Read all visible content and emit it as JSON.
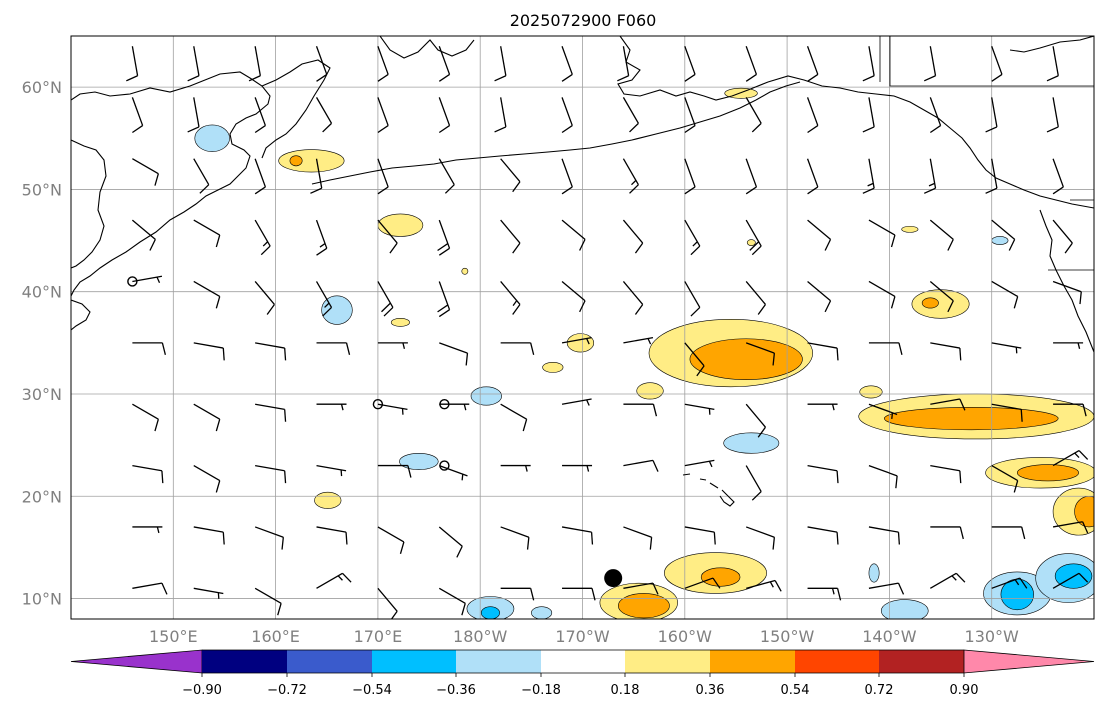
{
  "title": "2025072900 F060",
  "colors": {
    "frame": "#000000",
    "grid": "#a0a0a0",
    "coast": "#000000",
    "barb": "#000000",
    "tick_label": "#808080"
  },
  "map": {
    "projection": "equirectangular",
    "lon_range": [
      140,
      240
    ],
    "lat_range": [
      8,
      65
    ],
    "lat_lines": [
      10,
      20,
      30,
      40,
      50,
      60
    ],
    "lon_lines": [
      150,
      160,
      170,
      180,
      190,
      200,
      210,
      220,
      230
    ],
    "lat_labels": [
      "10°N",
      "20°N",
      "30°N",
      "40°N",
      "50°N",
      "60°N"
    ],
    "lon_labels": [
      "150°E",
      "160°E",
      "170°E",
      "180°W",
      "170°W",
      "160°W",
      "150°W",
      "140°W",
      "130°W"
    ]
  },
  "colorbar": {
    "levels": [
      -0.9,
      -0.72,
      -0.54,
      -0.36,
      -0.18,
      0.18,
      0.36,
      0.54,
      0.72,
      0.9
    ],
    "labels": [
      "−0.90",
      "−0.72",
      "−0.54",
      "−0.36",
      "−0.18",
      "0.18",
      "0.36",
      "0.54",
      "0.72",
      "0.90"
    ],
    "colors": [
      "#9932CC",
      "#000080",
      "#3A5BCC",
      "#00BFFF",
      "#B0E0F8",
      "#FFFFFF",
      "#FFED85",
      "#FFA500",
      "#FF4500",
      "#B22222",
      "#FF88AA"
    ]
  },
  "chart_data": {
    "type": "contourf",
    "variable_levels": [
      -0.9,
      -0.72,
      -0.54,
      -0.36,
      -0.18,
      0.18,
      0.36,
      0.54,
      0.72,
      0.9
    ],
    "marker": {
      "lon": 193.0,
      "lat": 12.0,
      "kind": "filled-circle"
    },
    "calm_circles": [
      {
        "lon": 146,
        "lat": 41
      },
      {
        "lon": 170,
        "lat": 29
      },
      {
        "lon": 176.5,
        "lat": 29
      },
      {
        "lon": 176.5,
        "lat": 23
      }
    ],
    "regions": [
      {
        "level": 0.18,
        "lon": 163.5,
        "lat": 52.8,
        "rx": 3.2,
        "ry": 1.1,
        "inner": [
          {
            "level": 0.36,
            "lon": 162.0,
            "lat": 52.8,
            "rx": 0.6,
            "ry": 0.5
          }
        ]
      },
      {
        "level": -0.18,
        "lon": 153.8,
        "lat": 55.0,
        "rx": 1.7,
        "ry": 1.3
      },
      {
        "level": 0.18,
        "lon": 172.2,
        "lat": 46.5,
        "rx": 2.2,
        "ry": 1.1
      },
      {
        "level": 0.18,
        "lon": 172.2,
        "lat": 37.0,
        "rx": 0.9,
        "ry": 0.4
      },
      {
        "level": -0.18,
        "lon": 166.0,
        "lat": 38.2,
        "rx": 1.5,
        "ry": 1.4
      },
      {
        "level": -0.18,
        "lon": 180.6,
        "lat": 29.8,
        "rx": 1.5,
        "ry": 0.9
      },
      {
        "level": -0.18,
        "lon": 174.0,
        "lat": 23.4,
        "rx": 1.9,
        "ry": 0.8
      },
      {
        "level": 0.18,
        "lon": 165.1,
        "lat": 19.6,
        "rx": 1.3,
        "ry": 0.8
      },
      {
        "level": 0.18,
        "lon": 189.8,
        "lat": 35.0,
        "rx": 1.3,
        "ry": 0.9
      },
      {
        "level": 0.18,
        "lon": 187.1,
        "lat": 32.6,
        "rx": 1.0,
        "ry": 0.5
      },
      {
        "level": 0.18,
        "lon": 196.6,
        "lat": 30.3,
        "rx": 1.3,
        "ry": 0.8
      },
      {
        "level": 0.18,
        "lon": 204.5,
        "lat": 34.0,
        "rx": 8.0,
        "ry": 3.3,
        "inner": [
          {
            "level": 0.36,
            "lon": 206.0,
            "lat": 33.4,
            "rx": 5.5,
            "ry": 2.0
          }
        ]
      },
      {
        "level": -0.18,
        "lon": 206.5,
        "lat": 25.2,
        "rx": 2.7,
        "ry": 1.0
      },
      {
        "level": 0.18,
        "lon": 225.0,
        "lat": 38.8,
        "rx": 2.8,
        "ry": 1.4,
        "inner": [
          {
            "level": 0.36,
            "lon": 224.0,
            "lat": 38.9,
            "rx": 0.8,
            "ry": 0.5
          }
        ]
      },
      {
        "level": 0.18,
        "lon": 228.5,
        "lat": 27.8,
        "rx": 11.5,
        "ry": 2.2,
        "inner": [
          {
            "level": 0.36,
            "lon": 228.0,
            "lat": 27.6,
            "rx": 8.5,
            "ry": 1.1
          }
        ]
      },
      {
        "level": 0.18,
        "lon": 234.8,
        "lat": 22.3,
        "rx": 5.4,
        "ry": 1.5,
        "inner": [
          {
            "level": 0.36,
            "lon": 235.5,
            "lat": 22.3,
            "rx": 3.0,
            "ry": 0.8
          }
        ]
      },
      {
        "level": 0.18,
        "lon": 238.5,
        "lat": 18.5,
        "rx": 2.5,
        "ry": 2.3,
        "inner": [
          {
            "level": 0.36,
            "lon": 239.5,
            "lat": 18.5,
            "rx": 1.4,
            "ry": 1.5
          }
        ]
      },
      {
        "level": 0.18,
        "lon": 203.0,
        "lat": 12.5,
        "rx": 5.0,
        "ry": 2.0,
        "inner": [
          {
            "level": 0.36,
            "lon": 203.5,
            "lat": 12.1,
            "rx": 1.9,
            "ry": 0.9
          }
        ]
      },
      {
        "level": 0.18,
        "lon": 195.5,
        "lat": 9.6,
        "rx": 3.8,
        "ry": 1.9,
        "inner": [
          {
            "level": 0.36,
            "lon": 196.0,
            "lat": 9.3,
            "rx": 2.5,
            "ry": 1.2
          }
        ]
      },
      {
        "level": -0.18,
        "lon": 181.0,
        "lat": 9.0,
        "rx": 2.3,
        "ry": 1.2,
        "inner": [
          {
            "level": -0.36,
            "lon": 181.0,
            "lat": 8.6,
            "rx": 0.9,
            "ry": 0.6
          }
        ]
      },
      {
        "level": -0.18,
        "lon": 186.0,
        "lat": 8.6,
        "rx": 1.0,
        "ry": 0.6
      },
      {
        "level": -0.18,
        "lon": 221.5,
        "lat": 8.8,
        "rx": 2.3,
        "ry": 1.1
      },
      {
        "level": -0.18,
        "lon": 232.5,
        "lat": 10.5,
        "rx": 3.3,
        "ry": 2.1,
        "inner": [
          {
            "level": -0.36,
            "lon": 232.5,
            "lat": 10.4,
            "rx": 1.6,
            "ry": 1.5
          }
        ]
      },
      {
        "level": -0.18,
        "lon": 237.5,
        "lat": 12.0,
        "rx": 3.2,
        "ry": 2.4,
        "inner": [
          {
            "level": -0.36,
            "lon": 238.0,
            "lat": 12.2,
            "rx": 1.8,
            "ry": 1.2
          }
        ]
      },
      {
        "level": -0.18,
        "lon": 218.5,
        "lat": 12.5,
        "rx": 0.5,
        "ry": 0.9
      },
      {
        "level": 0.18,
        "lon": 205.5,
        "lat": 59.4,
        "rx": 1.6,
        "ry": 0.5
      },
      {
        "level": 0.18,
        "lon": 222.0,
        "lat": 46.1,
        "rx": 0.8,
        "ry": 0.3
      },
      {
        "level": -0.18,
        "lon": 230.8,
        "lat": 45.0,
        "rx": 0.8,
        "ry": 0.4
      },
      {
        "level": 0.18,
        "lon": 178.5,
        "lat": 42.0,
        "rx": 0.3,
        "ry": 0.3
      },
      {
        "level": 0.18,
        "lon": 206.5,
        "lat": 44.8,
        "rx": 0.4,
        "ry": 0.3
      },
      {
        "level": 0.18,
        "lon": 218.2,
        "lat": 30.2,
        "rx": 1.1,
        "ry": 0.6
      }
    ],
    "wind_grid": {
      "lons": [
        146,
        152,
        158,
        164,
        170,
        176,
        182,
        188,
        194,
        200,
        206,
        212,
        218,
        224,
        230,
        236
      ],
      "lats": [
        11,
        17,
        23,
        29,
        35,
        41,
        47,
        53,
        59,
        64
      ],
      "barbs": [
        [
          [
            80,
            10
          ],
          [
            100,
            5
          ],
          [
            120,
            10
          ],
          [
            60,
            15
          ],
          [
            140,
            10
          ],
          [
            120,
            10
          ],
          [
            90,
            10
          ],
          [
            90,
            10
          ],
          [
            80,
            10
          ],
          [
            70,
            10
          ],
          [
            75,
            15
          ],
          [
            90,
            15
          ],
          [
            80,
            10
          ],
          [
            60,
            15
          ],
          [
            70,
            15
          ],
          [
            60,
            10
          ]
        ],
        [
          [
            90,
            5
          ],
          [
            100,
            10
          ],
          [
            110,
            10
          ],
          [
            100,
            10
          ],
          [
            120,
            10
          ],
          [
            130,
            10
          ],
          [
            110,
            10
          ],
          [
            100,
            10
          ],
          [
            110,
            10
          ],
          [
            100,
            10
          ],
          [
            110,
            10
          ],
          [
            100,
            10
          ],
          [
            100,
            10
          ],
          [
            90,
            10
          ],
          [
            90,
            10
          ],
          [
            80,
            10
          ]
        ],
        [
          [
            100,
            10
          ],
          [
            120,
            10
          ],
          [
            100,
            10
          ],
          [
            100,
            5
          ],
          [
            90,
            10
          ],
          [
            110,
            5
          ],
          [
            90,
            5
          ],
          [
            90,
            5
          ],
          [
            80,
            10
          ],
          [
            80,
            5
          ],
          [
            150,
            10
          ],
          [
            100,
            10
          ],
          [
            110,
            10
          ],
          [
            100,
            10
          ],
          [
            120,
            10
          ],
          [
            60,
            15
          ]
        ],
        [
          [
            120,
            10
          ],
          [
            120,
            10
          ],
          [
            100,
            10
          ],
          [
            90,
            5
          ],
          [
            100,
            5
          ],
          [
            90,
            5
          ],
          [
            120,
            10
          ],
          [
            80,
            5
          ],
          [
            90,
            10
          ],
          [
            100,
            5
          ],
          [
            140,
            10
          ],
          [
            90,
            5
          ],
          [
            110,
            5
          ],
          [
            80,
            10
          ],
          [
            100,
            10
          ],
          [
            90,
            10
          ]
        ],
        [
          [
            90,
            10
          ],
          [
            100,
            10
          ],
          [
            100,
            10
          ],
          [
            90,
            10
          ],
          [
            90,
            5
          ],
          [
            110,
            10
          ],
          [
            90,
            10
          ],
          [
            80,
            5
          ],
          [
            80,
            5
          ],
          [
            140,
            10
          ],
          [
            110,
            10
          ],
          [
            100,
            10
          ],
          [
            90,
            10
          ],
          [
            100,
            10
          ],
          [
            100,
            5
          ],
          [
            90,
            5
          ]
        ],
        [
          [
            80,
            5
          ],
          [
            120,
            10
          ],
          [
            140,
            10
          ],
          [
            150,
            15
          ],
          [
            150,
            20
          ],
          [
            160,
            20
          ],
          [
            140,
            15
          ],
          [
            130,
            10
          ],
          [
            140,
            10
          ],
          [
            150,
            10
          ],
          [
            140,
            10
          ],
          [
            130,
            10
          ],
          [
            120,
            10
          ],
          [
            130,
            10
          ],
          [
            120,
            10
          ],
          [
            110,
            10
          ]
        ],
        [
          [
            130,
            10
          ],
          [
            120,
            10
          ],
          [
            150,
            15
          ],
          [
            160,
            15
          ],
          [
            140,
            10
          ],
          [
            160,
            20
          ],
          [
            140,
            10
          ],
          [
            130,
            10
          ],
          [
            140,
            10
          ],
          [
            150,
            15
          ],
          [
            150,
            20
          ],
          [
            130,
            10
          ],
          [
            120,
            10
          ],
          [
            130,
            10
          ],
          [
            130,
            10
          ],
          [
            140,
            10
          ]
        ],
        [
          [
            120,
            10
          ],
          [
            150,
            10
          ],
          [
            160,
            10
          ],
          [
            170,
            10
          ],
          [
            160,
            10
          ],
          [
            150,
            10
          ],
          [
            140,
            10
          ],
          [
            160,
            10
          ],
          [
            150,
            15
          ],
          [
            160,
            10
          ],
          [
            160,
            10
          ],
          [
            160,
            10
          ],
          [
            170,
            15
          ],
          [
            170,
            15
          ],
          [
            170,
            10
          ],
          [
            160,
            10
          ]
        ],
        [
          [
            160,
            10
          ],
          [
            170,
            10
          ],
          [
            160,
            10
          ],
          [
            150,
            10
          ],
          [
            160,
            10
          ],
          [
            160,
            10
          ],
          [
            170,
            10
          ],
          [
            160,
            10
          ],
          [
            150,
            10
          ],
          [
            160,
            10
          ],
          [
            150,
            10
          ],
          [
            160,
            10
          ],
          [
            170,
            10
          ],
          [
            160,
            10
          ],
          [
            170,
            10
          ],
          [
            170,
            10
          ]
        ],
        [
          [
            170,
            10
          ],
          [
            170,
            10
          ],
          [
            170,
            10
          ],
          [
            160,
            10
          ],
          [
            160,
            10
          ],
          [
            160,
            10
          ],
          [
            170,
            10
          ],
          [
            160,
            10
          ],
          [
            170,
            10
          ],
          [
            160,
            10
          ],
          [
            160,
            10
          ],
          [
            160,
            10
          ],
          [
            170,
            10
          ],
          [
            170,
            10
          ],
          [
            160,
            10
          ],
          [
            170,
            10
          ]
        ]
      ]
    }
  }
}
